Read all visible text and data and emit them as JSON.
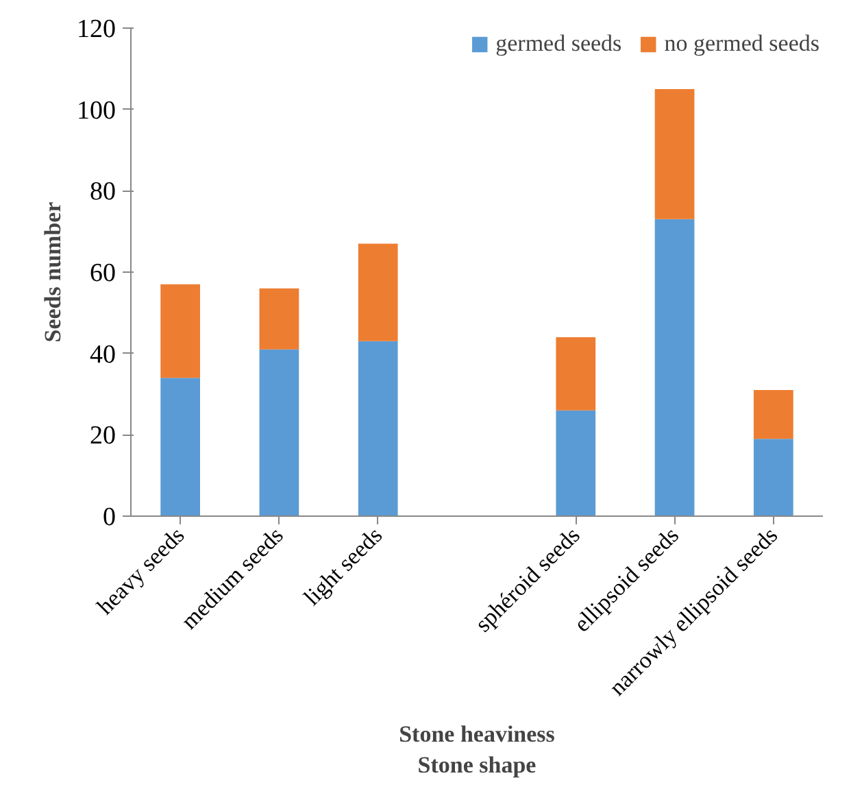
{
  "chart_data": {
    "type": "bar",
    "stacked": true,
    "categories": [
      "heavy seeds",
      "medium seeds",
      "light seeds",
      null,
      "sphéroid seeds",
      "ellipsoid seeds",
      "narrowly ellipsoid seeds"
    ],
    "series": [
      {
        "name": "germed seeds",
        "color": "#5b9bd5",
        "values": [
          34,
          41,
          43,
          null,
          26,
          73,
          19
        ]
      },
      {
        "name": "no germed seeds",
        "color": "#ed7d31",
        "values": [
          23,
          15,
          24,
          null,
          18,
          32,
          12
        ]
      }
    ],
    "xlabel": "Stone heaviness\nStone shape",
    "ylabel": "Seeds number",
    "ylim": [
      0,
      120
    ],
    "yticks": [
      0,
      20,
      40,
      60,
      80,
      100,
      120
    ],
    "grid": false,
    "legend": "top right"
  }
}
